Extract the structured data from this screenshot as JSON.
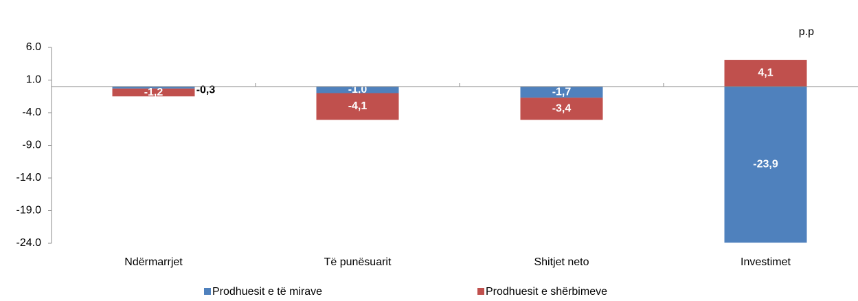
{
  "chart_data": {
    "type": "stacked-bar",
    "annotation": "p.p",
    "categories": [
      "Ndërmarrjet",
      "Të  punësuarit",
      "Shitjet neto",
      "Investimet"
    ],
    "series": [
      {
        "name": "Prodhuesit e të mirave",
        "color": "#4f81bd",
        "values": [
          -0.3,
          -1.0,
          -1.7,
          -23.9
        ],
        "value_labels": [
          "-0,3",
          "-1,0",
          "-1,7",
          "-23,9"
        ]
      },
      {
        "name": "Prodhuesit e shërbimeve",
        "color": "#c0504d",
        "values": [
          -1.2,
          -4.1,
          -3.4,
          4.1
        ],
        "value_labels": [
          "-1,2",
          "-4,1",
          "-3,4",
          "4,1"
        ]
      }
    ],
    "ylim": [
      -24,
      6
    ],
    "yticks": [
      {
        "value": -24,
        "label": "-24.0"
      },
      {
        "value": -19,
        "label": "-19.0"
      },
      {
        "value": -14,
        "label": "-14.0"
      },
      {
        "value": -9,
        "label": "-9.0"
      },
      {
        "value": -4,
        "label": "-4.0"
      },
      {
        "value": 1,
        "label": "1.0"
      },
      {
        "value": 6,
        "label": "6.0"
      }
    ],
    "legend": "bottom"
  }
}
